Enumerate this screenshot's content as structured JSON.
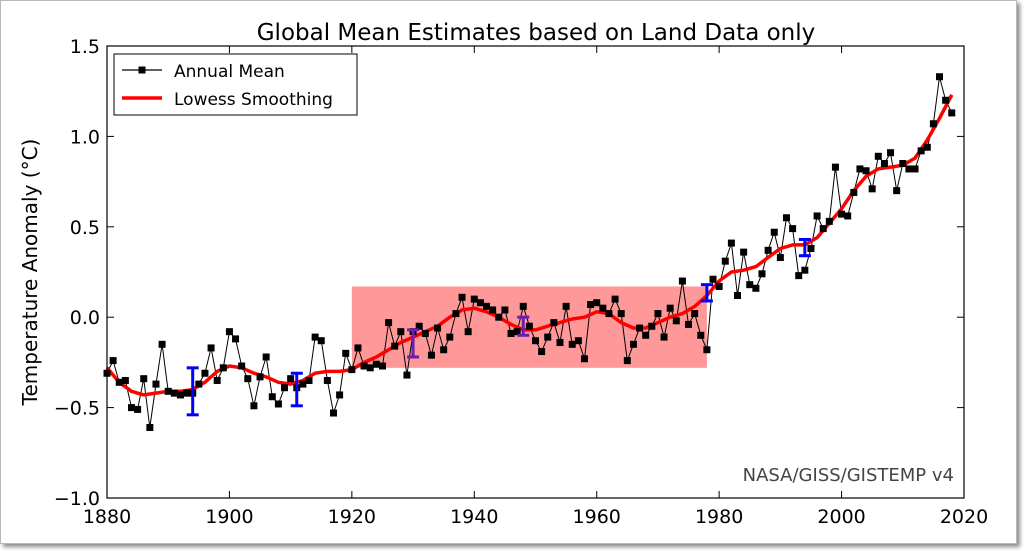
{
  "chart_data": {
    "type": "line",
    "title": "Global Mean Estimates based on Land Data only",
    "ylabel": "Temperature Anomaly (°C)",
    "xlabel": "",
    "xlim": [
      1880,
      2020
    ],
    "ylim": [
      -1.0,
      1.5
    ],
    "x_ticks": [
      1880,
      1900,
      1920,
      1940,
      1960,
      1980,
      2000,
      2020
    ],
    "y_ticks": [
      -1.0,
      -0.5,
      0.0,
      0.5,
      1.0,
      1.5
    ],
    "y_tick_labels": [
      "−1.0",
      "−0.5",
      "0.0",
      "0.5",
      "1.0",
      "1.5"
    ],
    "grid": false,
    "legend_position": "top-left",
    "watermark": "NASA/GISS/GISTEMP v4",
    "series": [
      {
        "name": "Annual Mean",
        "color": "#000000",
        "marker": "square",
        "x": [
          1880,
          1881,
          1882,
          1883,
          1884,
          1885,
          1886,
          1887,
          1888,
          1889,
          1890,
          1891,
          1892,
          1893,
          1894,
          1895,
          1896,
          1897,
          1898,
          1899,
          1900,
          1901,
          1902,
          1903,
          1904,
          1905,
          1906,
          1907,
          1908,
          1909,
          1910,
          1911,
          1912,
          1913,
          1914,
          1915,
          1916,
          1917,
          1918,
          1919,
          1920,
          1921,
          1922,
          1923,
          1924,
          1925,
          1926,
          1927,
          1928,
          1929,
          1930,
          1931,
          1932,
          1933,
          1934,
          1935,
          1936,
          1937,
          1938,
          1939,
          1940,
          1941,
          1942,
          1943,
          1944,
          1945,
          1946,
          1947,
          1948,
          1949,
          1950,
          1951,
          1952,
          1953,
          1954,
          1955,
          1956,
          1957,
          1958,
          1959,
          1960,
          1961,
          1962,
          1963,
          1964,
          1965,
          1966,
          1967,
          1968,
          1969,
          1970,
          1971,
          1972,
          1973,
          1974,
          1975,
          1976,
          1977,
          1978,
          1979,
          1980,
          1981,
          1982,
          1983,
          1984,
          1985,
          1986,
          1987,
          1988,
          1989,
          1990,
          1991,
          1992,
          1993,
          1994,
          1995,
          1996,
          1997,
          1998,
          1999,
          2000,
          2001,
          2002,
          2003,
          2004,
          2005,
          2006,
          2007,
          2008,
          2009,
          2010,
          2011,
          2012,
          2013,
          2014,
          2015,
          2016,
          2017,
          2018
        ],
        "values": [
          -0.31,
          -0.24,
          -0.36,
          -0.35,
          -0.5,
          -0.51,
          -0.34,
          -0.61,
          -0.37,
          -0.15,
          -0.41,
          -0.42,
          -0.43,
          -0.42,
          -0.42,
          -0.37,
          -0.31,
          -0.17,
          -0.35,
          -0.28,
          -0.08,
          -0.12,
          -0.27,
          -0.34,
          -0.49,
          -0.33,
          -0.22,
          -0.44,
          -0.48,
          -0.39,
          -0.34,
          -0.39,
          -0.37,
          -0.35,
          -0.11,
          -0.13,
          -0.35,
          -0.53,
          -0.43,
          -0.2,
          -0.29,
          -0.17,
          -0.27,
          -0.28,
          -0.26,
          -0.27,
          -0.03,
          -0.16,
          -0.08,
          -0.32,
          -0.08,
          -0.05,
          -0.09,
          -0.21,
          -0.06,
          -0.18,
          -0.11,
          0.02,
          0.11,
          -0.08,
          0.1,
          0.08,
          0.06,
          0.04,
          0.0,
          0.04,
          -0.09,
          -0.08,
          0.06,
          -0.05,
          -0.13,
          -0.19,
          -0.11,
          -0.03,
          -0.14,
          0.06,
          -0.15,
          -0.13,
          -0.23,
          0.07,
          0.08,
          0.05,
          0.02,
          0.1,
          0.02,
          -0.24,
          -0.15,
          -0.06,
          -0.1,
          -0.05,
          0.02,
          -0.11,
          0.05,
          -0.02,
          0.2,
          -0.04,
          0.02,
          -0.1,
          -0.18,
          0.21,
          0.17,
          0.31,
          0.41,
          0.12,
          0.36,
          0.18,
          0.16,
          0.24,
          0.37,
          0.47,
          0.33,
          0.55,
          0.49,
          0.23,
          0.26,
          0.38,
          0.56,
          0.49,
          0.53,
          0.83,
          0.57,
          0.56,
          0.69,
          0.82,
          0.81,
          0.71,
          0.89,
          0.85,
          0.91,
          0.7,
          0.85,
          0.82,
          0.82,
          0.92,
          0.94,
          1.07,
          1.33,
          1.2,
          1.13
        ]
      },
      {
        "name": "Lowess Smoothing",
        "color": "#ff0000",
        "x": [
          1880,
          1882,
          1884,
          1886,
          1888,
          1890,
          1892,
          1894,
          1896,
          1898,
          1900,
          1902,
          1904,
          1906,
          1908,
          1910,
          1912,
          1914,
          1916,
          1918,
          1920,
          1922,
          1924,
          1926,
          1928,
          1930,
          1932,
          1934,
          1936,
          1938,
          1940,
          1942,
          1944,
          1946,
          1948,
          1950,
          1952,
          1954,
          1956,
          1958,
          1960,
          1962,
          1964,
          1966,
          1968,
          1970,
          1972,
          1974,
          1976,
          1978,
          1980,
          1982,
          1984,
          1986,
          1988,
          1990,
          1992,
          1994,
          1996,
          1998,
          2000,
          2002,
          2004,
          2006,
          2008,
          2010,
          2012,
          2014,
          2016,
          2018
        ],
        "values": [
          -0.28,
          -0.36,
          -0.41,
          -0.43,
          -0.42,
          -0.41,
          -0.41,
          -0.4,
          -0.36,
          -0.3,
          -0.27,
          -0.28,
          -0.31,
          -0.33,
          -0.36,
          -0.37,
          -0.35,
          -0.31,
          -0.3,
          -0.3,
          -0.29,
          -0.25,
          -0.22,
          -0.18,
          -0.14,
          -0.11,
          -0.08,
          -0.05,
          0.0,
          0.04,
          0.05,
          0.03,
          0.0,
          -0.04,
          -0.07,
          -0.07,
          -0.05,
          -0.03,
          -0.01,
          0.0,
          0.03,
          0.02,
          -0.03,
          -0.06,
          -0.06,
          -0.03,
          0.0,
          0.02,
          0.06,
          0.12,
          0.2,
          0.25,
          0.26,
          0.28,
          0.33,
          0.38,
          0.4,
          0.4,
          0.44,
          0.52,
          0.6,
          0.7,
          0.78,
          0.82,
          0.83,
          0.84,
          0.88,
          0.98,
          1.1,
          1.23
        ]
      }
    ],
    "error_bars": [
      {
        "x": 1894,
        "low": -0.54,
        "high": -0.28,
        "color": "#0000ff"
      },
      {
        "x": 1911,
        "low": -0.49,
        "high": -0.31,
        "color": "#0000ff"
      },
      {
        "x": 1930,
        "low": -0.22,
        "high": -0.07,
        "color": "#6a1fb0"
      },
      {
        "x": 1948,
        "low": -0.1,
        "high": 0.0,
        "color": "#6a1fb0"
      },
      {
        "x": 1978,
        "low": 0.09,
        "high": 0.18,
        "color": "#0000ff"
      },
      {
        "x": 1994,
        "low": 0.34,
        "high": 0.43,
        "color": "#0000ff"
      }
    ],
    "highlight_region": {
      "x_start": 1920,
      "x_end": 1978,
      "y_low": -0.28,
      "y_high": 0.17,
      "color": "#ff9999"
    }
  }
}
